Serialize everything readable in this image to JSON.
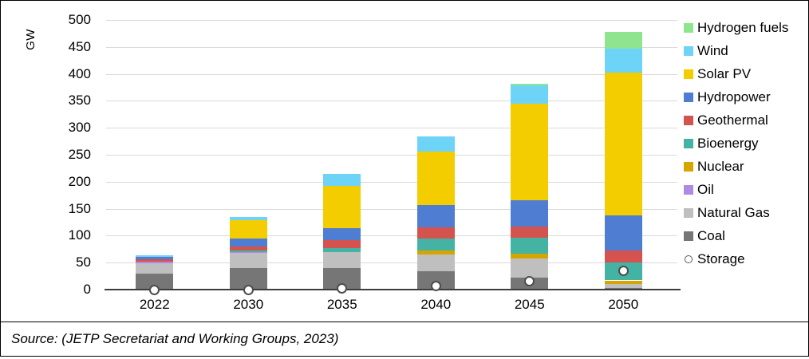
{
  "chart_data": {
    "type": "bar",
    "stacked": true,
    "title": "",
    "xlabel": "",
    "ylabel": "GW",
    "ylim": [
      0,
      500
    ],
    "ytick_step": 50,
    "grid": true,
    "legend_position": "right",
    "categories": [
      "2022",
      "2030",
      "2035",
      "2040",
      "2045",
      "2050"
    ],
    "series": [
      {
        "name": "Coal",
        "color": "#767676",
        "values": [
          30,
          40,
          40,
          34,
          22,
          3
        ]
      },
      {
        "name": "Natural Gas",
        "color": "#bfbfbf",
        "values": [
          19,
          29,
          30,
          31,
          35,
          7
        ]
      },
      {
        "name": "Oil",
        "color": "#ad8be3",
        "values": [
          3,
          1,
          0,
          0,
          0,
          0
        ]
      },
      {
        "name": "Nuclear",
        "color": "#d7a500",
        "values": [
          0,
          0,
          0,
          7,
          9,
          7
        ]
      },
      {
        "name": "Bioenergy",
        "color": "#44b3a4",
        "values": [
          0,
          3,
          7,
          22,
          30,
          34
        ]
      },
      {
        "name": "Geothermal",
        "color": "#d5534f",
        "values": [
          4,
          7,
          15,
          22,
          21,
          22
        ]
      },
      {
        "name": "Hydropower",
        "color": "#4e7dd1",
        "values": [
          4,
          15,
          22,
          41,
          49,
          65
        ]
      },
      {
        "name": "Solar PV",
        "color": "#f4cd00",
        "values": [
          0,
          33,
          78,
          99,
          179,
          265
        ]
      },
      {
        "name": "Wind",
        "color": "#6dd3f7",
        "values": [
          4,
          7,
          22,
          28,
          34,
          44
        ]
      },
      {
        "name": "Hydrogen fuels",
        "color": "#8fe48f",
        "values": [
          0,
          0,
          0,
          0,
          3,
          31
        ]
      }
    ],
    "marker_series": {
      "name": "Storage",
      "values": [
        0,
        0,
        2,
        6,
        15,
        35
      ],
      "fill": "#ffffff",
      "border": "#4d4d4d"
    },
    "legend": [
      {
        "label": "Hydrogen fuels",
        "color": "#8fe48f",
        "shape": "square"
      },
      {
        "label": "Wind",
        "color": "#6dd3f7",
        "shape": "square"
      },
      {
        "label": "Solar PV",
        "color": "#f4cd00",
        "shape": "square"
      },
      {
        "label": "Hydropower",
        "color": "#4e7dd1",
        "shape": "square"
      },
      {
        "label": "Geothermal",
        "color": "#d5534f",
        "shape": "square"
      },
      {
        "label": "Bioenergy",
        "color": "#44b3a4",
        "shape": "square"
      },
      {
        "label": "Nuclear",
        "color": "#d7a500",
        "shape": "square"
      },
      {
        "label": "Oil",
        "color": "#ad8be3",
        "shape": "square"
      },
      {
        "label": "Natural Gas",
        "color": "#bfbfbf",
        "shape": "square"
      },
      {
        "label": "Coal",
        "color": "#767676",
        "shape": "square"
      },
      {
        "label": "Storage",
        "color": "#ffffff",
        "shape": "circle"
      }
    ],
    "colors": {
      "gridline": "#d9d9d9",
      "axis": "#3d3d3d"
    }
  },
  "source": {
    "text": "Source: (JETP Secretariat and Working Groups, 2023)"
  }
}
